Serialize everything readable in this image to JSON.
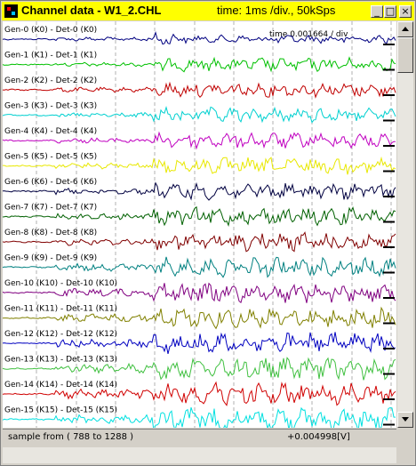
{
  "window": {
    "title": "Channel data - W1_2.CHL",
    "info": "time: 1ms /div., 50kSps",
    "buttons": {
      "minimize": "_",
      "maximize": "□",
      "close": "×"
    }
  },
  "plot": {
    "overlay_text": "time  0.001664 / div",
    "channels": [
      {
        "label": "Gen-0 (K0) - Det-0 (K0)",
        "color": "#000080"
      },
      {
        "label": "Gen-1 (K1) - Det-1 (K1)",
        "color": "#00c000"
      },
      {
        "label": "Gen-2 (K2) - Det-2 (K2)",
        "color": "#c00000"
      },
      {
        "label": "Gen-3 (K3) - Det-3 (K3)",
        "color": "#00d0d0"
      },
      {
        "label": "Gen-4 (K4) - Det-4 (K4)",
        "color": "#c000c0"
      },
      {
        "label": "Gen-5 (K5) - Det-5 (K5)",
        "color": "#e8e800"
      },
      {
        "label": "Gen-6 (K6) - Det-6 (K6)",
        "color": "#000040"
      },
      {
        "label": "Gen-7 (K7) - Det-7 (K7)",
        "color": "#006000"
      },
      {
        "label": "Gen-8 (K8) - Det-8 (K8)",
        "color": "#800000"
      },
      {
        "label": "Gen-9 (K9) - Det-9 (K9)",
        "color": "#008080"
      },
      {
        "label": "Gen-10 (K10) - Det-10 (K10)",
        "color": "#800080"
      },
      {
        "label": "Gen-11 (K11) - Det-11 (K11)",
        "color": "#808000"
      },
      {
        "label": "Gen-12 (K12) - Det-12 (K12)",
        "color": "#0000c0"
      },
      {
        "label": "Gen-13 (K13) - Det-13 (K13)",
        "color": "#40c040"
      },
      {
        "label": "Gen-14 (K14) - Det-14 (K14)",
        "color": "#d00000"
      },
      {
        "label": "Gen-15 (K15) - Det-15 (K15)",
        "color": "#00e0e0"
      }
    ]
  },
  "status": {
    "range": "sample from ( 788 to 1288 )",
    "value": "+0.004998[V]"
  }
}
